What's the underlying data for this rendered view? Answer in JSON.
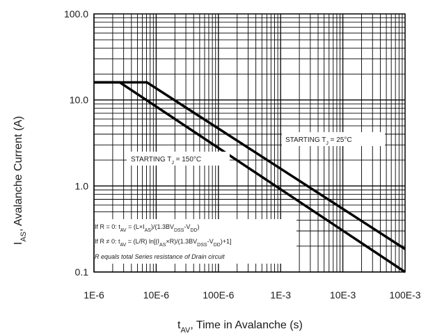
{
  "chart_data": {
    "type": "line",
    "xscale": "log",
    "yscale": "log",
    "xlim": [
      1e-06,
      0.1
    ],
    "ylim": [
      0.1,
      100
    ],
    "grid": true,
    "xlabel": {
      "main": "t",
      "sub": "AV",
      "rest": ", Time in Avalanche (s)"
    },
    "ylabel": {
      "main": "I",
      "sub": "AS",
      "rest": ", Avalanche Current (A)"
    },
    "xticks": [
      {
        "value": 1e-06,
        "label": "1E-6"
      },
      {
        "value": 1e-05,
        "label": "10E-6"
      },
      {
        "value": 0.0001,
        "label": "100E-6"
      },
      {
        "value": 0.001,
        "label": "1E-3"
      },
      {
        "value": 0.01,
        "label": "10E-3"
      },
      {
        "value": 0.1,
        "label": "100E-3"
      }
    ],
    "yticks": [
      {
        "value": 0.1,
        "label": "0.1"
      },
      {
        "value": 1,
        "label": "1.0"
      },
      {
        "value": 10,
        "label": "10.0"
      },
      {
        "value": 100,
        "label": "100.0"
      }
    ],
    "series": [
      {
        "label": {
          "main": "STARTING T",
          "sub": "J",
          "rest": " = 25°C"
        },
        "points": [
          [
            1e-06,
            16
          ],
          [
            7.1e-06,
            16
          ],
          [
            0.1,
            0.185
          ]
        ]
      },
      {
        "label": {
          "main": "STARTING T",
          "sub": "J",
          "rest": " = 150°C"
        },
        "points": [
          [
            1e-06,
            16
          ],
          [
            2.6e-06,
            16
          ],
          [
            0.1,
            0.1
          ]
        ]
      }
    ],
    "annotations": {
      "line1": "If R = 0: t",
      "line1_sub": "AV",
      "line1_rest": " = (L×I",
      "line1_sub2": "AS",
      "line1_rest2": ")/(1.3BV",
      "line1_sub3": "DSS",
      "line1_rest3": "-V",
      "line1_sub4": "DD",
      "line1_rest4": ")",
      "line2": "If R ≠ 0: t",
      "line2_sub": "AV",
      "line2_rest": " = (L/R) ln[(I",
      "line2_sub2": "AS",
      "line2_rest2": "×R)/(1.3BV",
      "line2_sub3": "DSS",
      "line2_rest3": "-V",
      "line2_sub4": "DD",
      "line2_rest4": ")+1]",
      "note": "R equals total Series resistance of Drain circuit"
    }
  }
}
